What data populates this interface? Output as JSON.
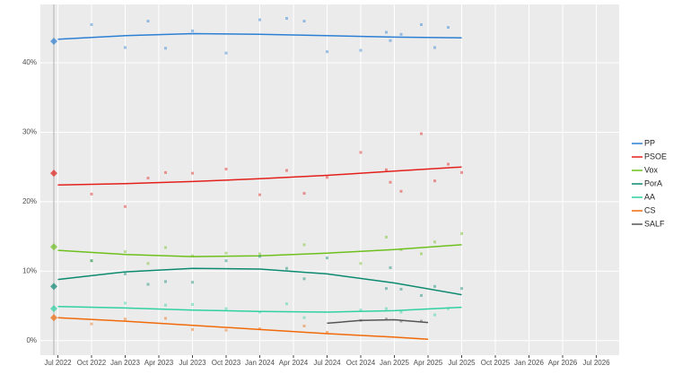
{
  "chart_data": {
    "type": "poll-trend",
    "xlim": [
      2022.37,
      2026.67
    ],
    "ylim": [
      -2.1,
      48.4
    ],
    "yticks": [
      {
        "value": 0,
        "label": "0%"
      },
      {
        "value": 10,
        "label": "10%"
      },
      {
        "value": 20,
        "label": "20%"
      },
      {
        "value": 30,
        "label": "30%"
      },
      {
        "value": 40,
        "label": "40%"
      }
    ],
    "xticks": [
      {
        "value": 2022.5,
        "label": "Jul 2022"
      },
      {
        "value": 2022.75,
        "label": "Oct 2022"
      },
      {
        "value": 2023.0,
        "label": "Jan 2023"
      },
      {
        "value": 2023.25,
        "label": "Apr 2023"
      },
      {
        "value": 2023.5,
        "label": "Jul 2023"
      },
      {
        "value": 2023.75,
        "label": "Oct 2023"
      },
      {
        "value": 2024.0,
        "label": "Jan 2024"
      },
      {
        "value": 2024.25,
        "label": "Apr 2024"
      },
      {
        "value": 2024.5,
        "label": "Jul 2024"
      },
      {
        "value": 2024.75,
        "label": "Oct 2024"
      },
      {
        "value": 2025.0,
        "label": "Jan 2025"
      },
      {
        "value": 2025.25,
        "label": "Apr 2025"
      },
      {
        "value": 2025.5,
        "label": "Jul 2025"
      },
      {
        "value": 2025.75,
        "label": "Oct 2025"
      },
      {
        "value": 2026.0,
        "label": "Jan 2026"
      },
      {
        "value": 2026.25,
        "label": "Apr 2026"
      },
      {
        "value": 2026.5,
        "label": "Jul 2026"
      }
    ],
    "grid": true,
    "legend": "right",
    "election_x": 2022.47,
    "series": [
      {
        "name": "PP",
        "color": "#2b7fd4",
        "election": 43.1,
        "x": [
          2022.5,
          2023.0,
          2023.5,
          2024.0,
          2024.5,
          2025.0,
          2025.5
        ],
        "values": [
          43.4,
          43.9,
          44.2,
          44.1,
          43.9,
          43.7,
          43.6
        ],
        "points_x": [
          2022.75,
          2023.0,
          2023.17,
          2023.3,
          2023.5,
          2023.75,
          2024.0,
          2024.2,
          2024.33,
          2024.5,
          2024.75,
          2024.94,
          2024.97,
          2025.05,
          2025.2,
          2025.3,
          2025.4
        ],
        "points": [
          45.5,
          42.2,
          46,
          42.1,
          44.6,
          41.4,
          46.2,
          46.4,
          46,
          41.6,
          41.8,
          44.4,
          43.2,
          44.1,
          45.5,
          42.2,
          45.1
        ]
      },
      {
        "name": "PSOE",
        "color": "#e3201b",
        "election": 24.1,
        "x": [
          2022.5,
          2023.0,
          2023.5,
          2024.0,
          2024.5,
          2025.0,
          2025.5
        ],
        "values": [
          22.4,
          22.6,
          22.9,
          23.3,
          23.8,
          24.4,
          25.0
        ],
        "points_x": [
          2022.75,
          2023.0,
          2023.17,
          2023.3,
          2023.5,
          2023.75,
          2024.0,
          2024.2,
          2024.33,
          2024.5,
          2024.75,
          2024.94,
          2024.97,
          2025.05,
          2025.2,
          2025.3,
          2025.4,
          2025.5
        ],
        "points": [
          21.1,
          19.3,
          23.4,
          24.2,
          24.1,
          24.7,
          21,
          24.5,
          21.2,
          23.5,
          27.1,
          24.6,
          22.8,
          21.5,
          29.8,
          23,
          25.4,
          24.2
        ]
      },
      {
        "name": "Vox",
        "color": "#6ebf1e",
        "election": 13.5,
        "x": [
          2022.5,
          2023.0,
          2023.5,
          2024.0,
          2024.5,
          2025.0,
          2025.5
        ],
        "values": [
          13.0,
          12.4,
          12.1,
          12.2,
          12.6,
          13.1,
          13.8
        ],
        "points_x": [
          2022.75,
          2023.0,
          2023.17,
          2023.3,
          2023.5,
          2023.75,
          2024.0,
          2024.33,
          2024.75,
          2024.94,
          2025.05,
          2025.2,
          2025.3,
          2025.5
        ],
        "points": [
          11.5,
          12.8,
          11.1,
          13.4,
          12.2,
          12.6,
          12.5,
          13.8,
          11.1,
          14.9,
          13.1,
          12.5,
          14.2,
          15.4
        ]
      },
      {
        "name": "PorA",
        "color": "#0c8a70",
        "election": 7.8,
        "x": [
          2022.5,
          2023.0,
          2023.5,
          2024.0,
          2024.5,
          2025.0,
          2025.5
        ],
        "values": [
          8.8,
          9.9,
          10.4,
          10.3,
          9.6,
          8.3,
          6.6
        ],
        "points_x": [
          2022.75,
          2023.0,
          2023.17,
          2023.3,
          2023.5,
          2023.75,
          2024.0,
          2024.2,
          2024.33,
          2024.5,
          2024.94,
          2024.97,
          2025.05,
          2025.2,
          2025.3,
          2025.5
        ],
        "points": [
          11.5,
          9.6,
          8.1,
          8.5,
          8.4,
          11.5,
          12.1,
          10.4,
          8.9,
          11.9,
          7.5,
          10.5,
          7.4,
          6.5,
          7.8,
          7.5
        ]
      },
      {
        "name": "AA",
        "color": "#2fd1a1",
        "election": 4.6,
        "x": [
          2022.5,
          2023.0,
          2023.5,
          2024.0,
          2024.5,
          2025.0,
          2025.5
        ],
        "values": [
          4.9,
          4.7,
          4.4,
          4.2,
          4.1,
          4.3,
          4.8
        ],
        "points_x": [
          2023.0,
          2023.3,
          2023.5,
          2023.75,
          2024.0,
          2024.2,
          2024.33,
          2024.75,
          2024.94,
          2025.05,
          2025.3,
          2025.4
        ],
        "points": [
          5.4,
          5.1,
          5.2,
          4.6,
          4.1,
          5.3,
          3.3,
          4.4,
          4.6,
          4.1,
          3.7,
          4.6
        ]
      },
      {
        "name": "CS",
        "color": "#f06a0a",
        "election": 3.3,
        "x": [
          2022.5,
          2023.0,
          2023.5,
          2024.0,
          2024.5,
          2025.0,
          2025.25
        ],
        "values": [
          3.3,
          2.8,
          2.2,
          1.6,
          1.0,
          0.5,
          0.2
        ],
        "points_x": [
          2022.75,
          2023.0,
          2023.3,
          2023.5,
          2023.75,
          2024.0,
          2024.33,
          2024.5
        ],
        "points": [
          2.4,
          3.1,
          3.2,
          1.6,
          1.5,
          1.7,
          2.1,
          1.2
        ]
      },
      {
        "name": "SALF",
        "color": "#555555",
        "x": [
          2024.5,
          2024.75,
          2025.0,
          2025.25
        ],
        "values": [
          2.5,
          2.9,
          3.0,
          2.6
        ],
        "points_x": [
          2024.75,
          2024.94,
          2025.05,
          2025.2
        ],
        "points": [
          2.9,
          3.1,
          2.8,
          2.8
        ]
      }
    ]
  }
}
